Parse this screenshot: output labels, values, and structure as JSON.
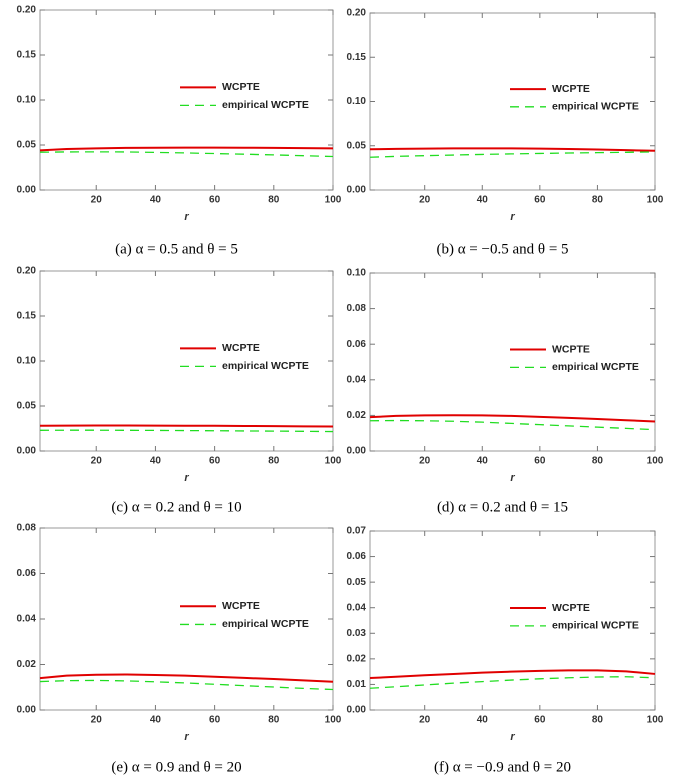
{
  "chart_data": [
    {
      "type": "line",
      "caption": "(a) α = 0.5 and θ = 5",
      "xlabel": "r",
      "x": [
        1,
        10,
        20,
        30,
        40,
        50,
        60,
        70,
        80,
        90,
        100
      ],
      "xlim": [
        1,
        100
      ],
      "xticks": [
        20,
        40,
        60,
        80,
        100
      ],
      "ylim": [
        0,
        0.2
      ],
      "yticks": [
        {
          "value": 0,
          "label": "0.00"
        },
        {
          "value": 0.05,
          "label": "0.05"
        },
        {
          "value": 0.1,
          "label": "0.10"
        },
        {
          "value": 0.15,
          "label": "0.15"
        },
        {
          "value": 0.2,
          "label": "0.20"
        }
      ],
      "series": [
        {
          "name": "WCPTE",
          "color": "#e00000",
          "dashed": false,
          "values": [
            0.044,
            0.0455,
            0.0463,
            0.0468,
            0.047,
            0.0471,
            0.0471,
            0.047,
            0.0468,
            0.0465,
            0.0462
          ]
        },
        {
          "name": "empirical WCPTE",
          "color": "#22dd22",
          "dashed": true,
          "values": [
            0.042,
            0.0423,
            0.0424,
            0.0423,
            0.0418,
            0.0412,
            0.0405,
            0.0398,
            0.039,
            0.0381,
            0.0372
          ]
        }
      ]
    },
    {
      "type": "line",
      "caption": "(b) α = −0.5 and θ = 5",
      "xlabel": "r",
      "x": [
        1,
        10,
        20,
        30,
        40,
        50,
        60,
        70,
        80,
        90,
        100
      ],
      "xlim": [
        1,
        100
      ],
      "xticks": [
        20,
        40,
        60,
        80,
        100
      ],
      "ylim": [
        0,
        0.2
      ],
      "yticks": [
        {
          "value": 0,
          "label": "0.00"
        },
        {
          "value": 0.05,
          "label": "0.05"
        },
        {
          "value": 0.1,
          "label": "0.10"
        },
        {
          "value": 0.15,
          "label": "0.15"
        },
        {
          "value": 0.2,
          "label": "0.20"
        }
      ],
      "series": [
        {
          "name": "WCPTE",
          "color": "#e00000",
          "dashed": false,
          "values": [
            0.046,
            0.0465,
            0.0468,
            0.047,
            0.0471,
            0.047,
            0.0468,
            0.0463,
            0.0457,
            0.045,
            0.0443
          ]
        },
        {
          "name": "empirical WCPTE",
          "color": "#22dd22",
          "dashed": true,
          "values": [
            0.037,
            0.038,
            0.0388,
            0.0395,
            0.0402,
            0.0408,
            0.0413,
            0.0418,
            0.0422,
            0.0426,
            0.043
          ]
        }
      ]
    },
    {
      "type": "line",
      "caption": "(c) α = 0.2 and θ = 10",
      "xlabel": "r",
      "x": [
        1,
        10,
        20,
        30,
        40,
        50,
        60,
        70,
        80,
        90,
        100
      ],
      "xlim": [
        1,
        100
      ],
      "xticks": [
        20,
        40,
        60,
        80,
        100
      ],
      "ylim": [
        0,
        0.2
      ],
      "yticks": [
        {
          "value": 0,
          "label": "0.00"
        },
        {
          "value": 0.05,
          "label": "0.05"
        },
        {
          "value": 0.1,
          "label": "0.10"
        },
        {
          "value": 0.15,
          "label": "0.15"
        },
        {
          "value": 0.2,
          "label": "0.20"
        }
      ],
      "series": [
        {
          "name": "WCPTE",
          "color": "#e00000",
          "dashed": false,
          "values": [
            0.028,
            0.0282,
            0.0283,
            0.0283,
            0.0282,
            0.0281,
            0.028,
            0.0278,
            0.0276,
            0.0274,
            0.0272
          ]
        },
        {
          "name": "empirical WCPTE",
          "color": "#22dd22",
          "dashed": true,
          "values": [
            0.023,
            0.0231,
            0.0231,
            0.023,
            0.0229,
            0.0227,
            0.0225,
            0.0223,
            0.0221,
            0.0219,
            0.0216
          ]
        }
      ]
    },
    {
      "type": "line",
      "caption": "(d) α = 0.2 and θ = 15",
      "xlabel": "r",
      "x": [
        1,
        10,
        20,
        30,
        40,
        50,
        60,
        70,
        80,
        90,
        100
      ],
      "xlim": [
        1,
        100
      ],
      "xticks": [
        20,
        40,
        60,
        80,
        100
      ],
      "ylim": [
        0,
        0.1
      ],
      "yticks": [
        {
          "value": 0,
          "label": "0.00"
        },
        {
          "value": 0.02,
          "label": "0.02"
        },
        {
          "value": 0.04,
          "label": "0.04"
        },
        {
          "value": 0.06,
          "label": "0.06"
        },
        {
          "value": 0.08,
          "label": "0.08"
        },
        {
          "value": 0.1,
          "label": "0.10"
        }
      ],
      "series": [
        {
          "name": "WCPTE",
          "color": "#e00000",
          "dashed": false,
          "values": [
            0.019,
            0.0197,
            0.02,
            0.0201,
            0.02,
            0.0197,
            0.0192,
            0.0186,
            0.018,
            0.0173,
            0.0166
          ]
        },
        {
          "name": "empirical WCPTE",
          "color": "#22dd22",
          "dashed": true,
          "values": [
            0.017,
            0.0171,
            0.017,
            0.0167,
            0.0162,
            0.0155,
            0.0148,
            0.0141,
            0.0134,
            0.0127,
            0.012
          ]
        }
      ]
    },
    {
      "type": "line",
      "caption": "(e) α = 0.9 and θ = 20",
      "xlabel": "r",
      "x": [
        1,
        10,
        20,
        30,
        40,
        50,
        60,
        70,
        80,
        90,
        100
      ],
      "xlim": [
        1,
        100
      ],
      "xticks": [
        20,
        40,
        60,
        80,
        100
      ],
      "ylim": [
        0,
        0.08
      ],
      "yticks": [
        {
          "value": 0,
          "label": "0.00"
        },
        {
          "value": 0.02,
          "label": "0.02"
        },
        {
          "value": 0.04,
          "label": "0.04"
        },
        {
          "value": 0.06,
          "label": "0.06"
        },
        {
          "value": 0.08,
          "label": "0.08"
        }
      ],
      "series": [
        {
          "name": "WCPTE",
          "color": "#e00000",
          "dashed": false,
          "values": [
            0.014,
            0.0151,
            0.0155,
            0.0156,
            0.0154,
            0.0151,
            0.0146,
            0.0141,
            0.0136,
            0.013,
            0.0124
          ]
        },
        {
          "name": "empirical WCPTE",
          "color": "#22dd22",
          "dashed": true,
          "values": [
            0.0125,
            0.0129,
            0.013,
            0.0128,
            0.0124,
            0.0119,
            0.0113,
            0.0107,
            0.0101,
            0.0095,
            0.009
          ]
        }
      ]
    },
    {
      "type": "line",
      "caption": "(f) α = −0.9 and θ = 20",
      "xlabel": "r",
      "x": [
        1,
        10,
        20,
        30,
        40,
        50,
        60,
        70,
        80,
        90,
        100
      ],
      "xlim": [
        1,
        100
      ],
      "xticks": [
        20,
        40,
        60,
        80,
        100
      ],
      "ylim": [
        0,
        0.07
      ],
      "yticks": [
        {
          "value": 0,
          "label": "0.00"
        },
        {
          "value": 0.01,
          "label": "0.01"
        },
        {
          "value": 0.02,
          "label": "0.02"
        },
        {
          "value": 0.03,
          "label": "0.03"
        },
        {
          "value": 0.04,
          "label": "0.04"
        },
        {
          "value": 0.05,
          "label": "0.05"
        },
        {
          "value": 0.06,
          "label": "0.06"
        },
        {
          "value": 0.07,
          "label": "0.07"
        }
      ],
      "series": [
        {
          "name": "WCPTE",
          "color": "#e00000",
          "dashed": false,
          "values": [
            0.0125,
            0.013,
            0.0136,
            0.0141,
            0.0146,
            0.015,
            0.0153,
            0.0155,
            0.0155,
            0.0151,
            0.0141
          ]
        },
        {
          "name": "empirical WCPTE",
          "color": "#22dd22",
          "dashed": true,
          "values": [
            0.0085,
            0.0091,
            0.0098,
            0.0105,
            0.0111,
            0.0117,
            0.0122,
            0.0126,
            0.0129,
            0.013,
            0.0126
          ]
        }
      ]
    }
  ]
}
